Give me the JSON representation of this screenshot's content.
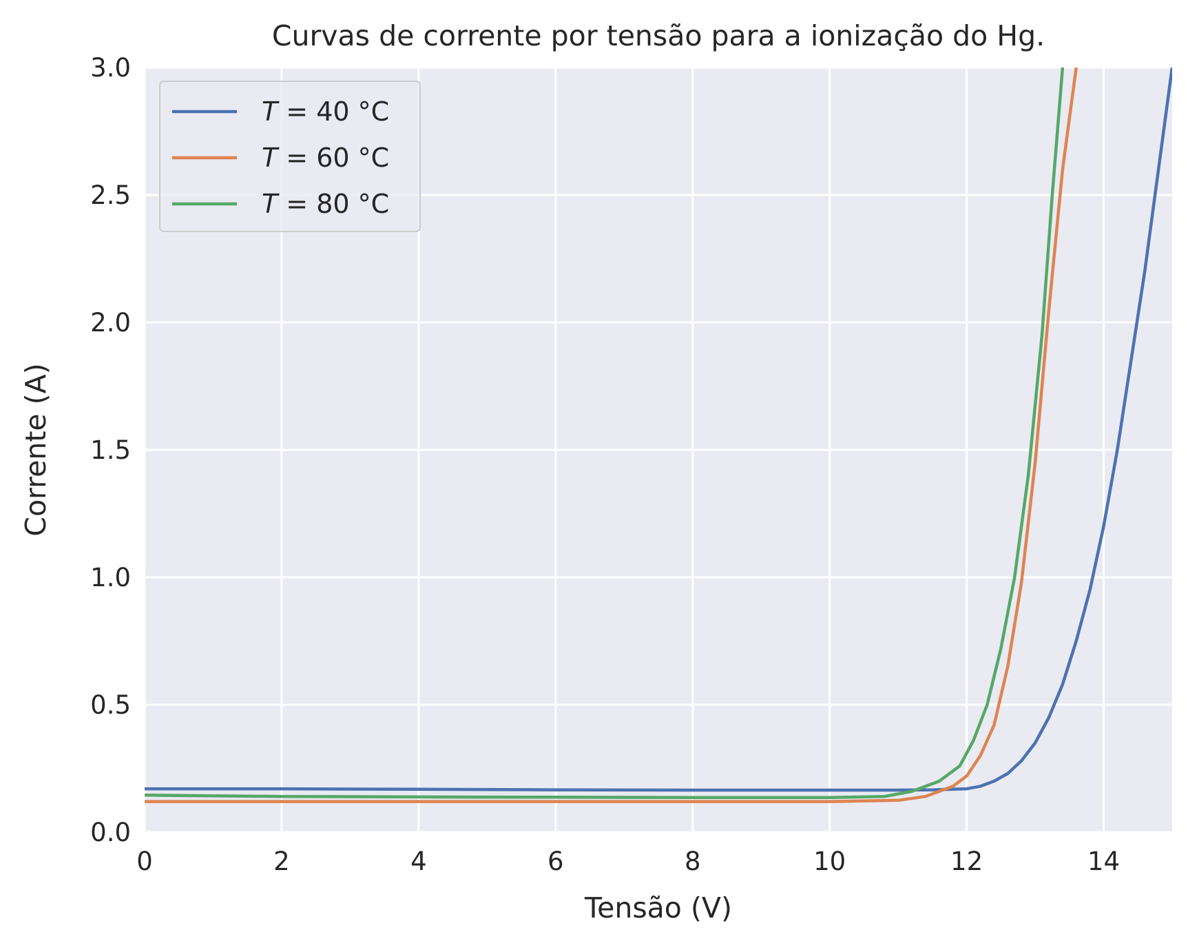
{
  "chart_data": {
    "type": "line",
    "title": "Curvas de corrente por tensão para a ionização do Hg.",
    "xlabel": "Tensão (V)",
    "ylabel": "Corrente (A)",
    "xlim": [
      0,
      15
    ],
    "ylim": [
      0,
      3
    ],
    "xticks": [
      0,
      2,
      4,
      6,
      8,
      10,
      12,
      14
    ],
    "xtick_labels": [
      "0",
      "2",
      "4",
      "6",
      "8",
      "10",
      "12",
      "14"
    ],
    "yticks": [
      0,
      0.5,
      1,
      1.5,
      2,
      2.5,
      3
    ],
    "ytick_labels": [
      "0.0",
      "0.5",
      "1.0",
      "1.5",
      "2.0",
      "2.5",
      "3.0"
    ],
    "grid": true,
    "legend_position": "top-left",
    "series": [
      {
        "name": "T = 40 °C",
        "legend_var": "T",
        "legend_rest": " = 40 °C",
        "color": "#4c72b0",
        "x": [
          0,
          2,
          4,
          6,
          8,
          10,
          11,
          11.5,
          12,
          12.2,
          12.4,
          12.6,
          12.8,
          13.0,
          13.2,
          13.4,
          13.6,
          13.8,
          14.0,
          14.2,
          14.4,
          14.6,
          14.8,
          15.0
        ],
        "y": [
          0.17,
          0.17,
          0.168,
          0.166,
          0.165,
          0.165,
          0.165,
          0.166,
          0.17,
          0.18,
          0.2,
          0.23,
          0.28,
          0.35,
          0.45,
          0.58,
          0.75,
          0.95,
          1.2,
          1.5,
          1.85,
          2.2,
          2.6,
          3.0
        ]
      },
      {
        "name": "T = 60 °C",
        "legend_var": "T",
        "legend_rest": " = 60 °C",
        "color": "#dd8452",
        "x": [
          0,
          2,
          4,
          6,
          8,
          10,
          11.0,
          11.4,
          11.8,
          12.0,
          12.2,
          12.4,
          12.6,
          12.8,
          13.0,
          13.2,
          13.4,
          13.6
        ],
        "y": [
          0.12,
          0.12,
          0.12,
          0.12,
          0.12,
          0.12,
          0.125,
          0.14,
          0.18,
          0.22,
          0.3,
          0.42,
          0.65,
          0.98,
          1.45,
          2.05,
          2.6,
          3.0
        ]
      },
      {
        "name": "T = 80 °C",
        "legend_var": "T",
        "legend_rest": " = 80 °C",
        "color": "#55a868",
        "x": [
          0,
          2,
          4,
          6,
          8,
          10,
          10.8,
          11.2,
          11.6,
          11.9,
          12.1,
          12.3,
          12.5,
          12.7,
          12.9,
          13.1,
          13.25,
          13.4
        ],
        "y": [
          0.145,
          0.14,
          0.138,
          0.137,
          0.136,
          0.136,
          0.14,
          0.16,
          0.2,
          0.26,
          0.36,
          0.5,
          0.72,
          1.0,
          1.4,
          1.95,
          2.5,
          3.0
        ]
      }
    ]
  }
}
